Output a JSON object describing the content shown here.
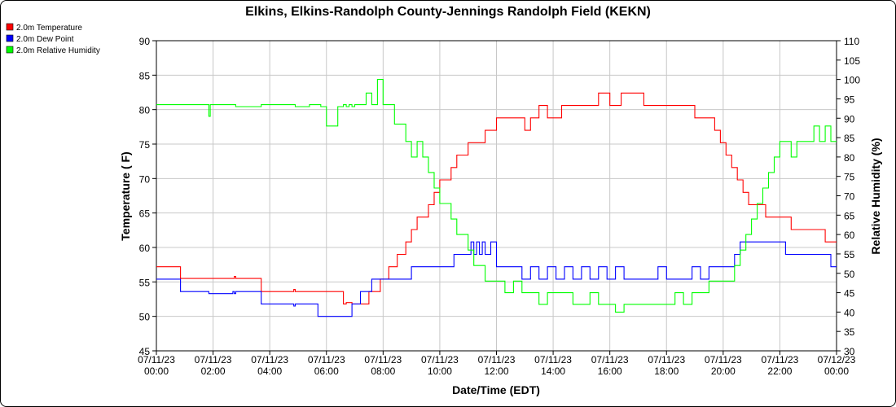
{
  "chart_data": {
    "type": "line",
    "title": "Elkins, Elkins-Randolph County-Jennings Randolph Field (KEKN)",
    "xlabel": "Date/Time (EDT)",
    "ylabel": "Temperature ( F)",
    "y2label": "Relative Humidity (%)",
    "ylim": [
      45,
      90
    ],
    "y2lim": [
      30,
      110
    ],
    "grid": true,
    "legend_position": "top-left",
    "x_range_hours": [
      0,
      24
    ],
    "x_ticks": [
      {
        "hour": 0,
        "date": "07/11/23",
        "time": "00:00"
      },
      {
        "hour": 2,
        "date": "07/11/23",
        "time": "02:00"
      },
      {
        "hour": 4,
        "date": "07/11/23",
        "time": "04:00"
      },
      {
        "hour": 6,
        "date": "07/11/23",
        "time": "06:00"
      },
      {
        "hour": 8,
        "date": "07/11/23",
        "time": "08:00"
      },
      {
        "hour": 10,
        "date": "07/11/23",
        "time": "10:00"
      },
      {
        "hour": 12,
        "date": "07/11/23",
        "time": "12:00"
      },
      {
        "hour": 14,
        "date": "07/11/23",
        "time": "14:00"
      },
      {
        "hour": 16,
        "date": "07/11/23",
        "time": "16:00"
      },
      {
        "hour": 18,
        "date": "07/11/23",
        "time": "18:00"
      },
      {
        "hour": 20,
        "date": "07/11/23",
        "time": "20:00"
      },
      {
        "hour": 22,
        "date": "07/11/23",
        "time": "22:00"
      },
      {
        "hour": 24,
        "date": "07/12/23",
        "time": "00:00"
      }
    ],
    "y_ticks": [
      45,
      50,
      55,
      60,
      65,
      70,
      75,
      80,
      85,
      90
    ],
    "y2_ticks": [
      30,
      35,
      40,
      45,
      50,
      55,
      60,
      65,
      70,
      75,
      80,
      85,
      90,
      95,
      100,
      105,
      110
    ],
    "series": [
      {
        "name": "2.0m Temperature",
        "color": "#ff0000",
        "axis": "left",
        "x": [
          0,
          0.8,
          0.85,
          2.7,
          2.75,
          2.8,
          3.6,
          3.7,
          4.8,
          4.85,
          4.9,
          5.6,
          5.7,
          5.8,
          6.5,
          6.6,
          6.65,
          6.7,
          6.9,
          7.0,
          7.1,
          7.4,
          7.5,
          7.7,
          7.9,
          8.0,
          8.2,
          8.4,
          8.5,
          8.6,
          8.8,
          9.0,
          9.2,
          9.4,
          9.6,
          9.8,
          10.0,
          10.2,
          10.4,
          10.6,
          10.8,
          11.0,
          11.2,
          11.4,
          11.6,
          11.8,
          12.0,
          12.4,
          12.8,
          13.0,
          13.2,
          13.5,
          13.8,
          14.0,
          14.3,
          14.6,
          15.0,
          15.3,
          15.6,
          16.0,
          16.4,
          16.8,
          17.2,
          17.6,
          18.0,
          18.4,
          18.7,
          19.0,
          19.4,
          19.7,
          19.9,
          20.1,
          20.3,
          20.5,
          20.7,
          20.9,
          21.1,
          21.3,
          21.5,
          21.7,
          21.9,
          22.1,
          22.4,
          22.7,
          23.0,
          23.3,
          23.6,
          24.0
        ],
        "y": [
          57.2,
          57.2,
          55.5,
          55.5,
          55.8,
          55.5,
          55.5,
          53.6,
          53.6,
          53.9,
          53.6,
          53.6,
          53.6,
          53.6,
          53.6,
          51.8,
          51.8,
          52.0,
          51.8,
          51.8,
          51.8,
          51.8,
          53.6,
          53.6,
          55.4,
          55.4,
          57.2,
          57.2,
          59.0,
          59.0,
          60.8,
          62.6,
          64.4,
          64.4,
          66.2,
          68.0,
          69.8,
          69.8,
          71.6,
          73.4,
          73.4,
          75.2,
          75.2,
          75.2,
          77.0,
          77.0,
          78.8,
          78.8,
          78.8,
          77.0,
          78.8,
          80.6,
          78.8,
          78.8,
          80.6,
          80.6,
          80.6,
          80.6,
          82.4,
          80.6,
          82.4,
          82.4,
          80.6,
          80.6,
          80.6,
          80.6,
          80.6,
          78.8,
          78.8,
          77.0,
          75.2,
          73.4,
          71.6,
          69.8,
          68.0,
          66.2,
          66.2,
          66.2,
          64.4,
          64.4,
          64.4,
          64.4,
          62.6,
          62.6,
          62.6,
          62.6,
          60.8,
          60.8
        ]
      },
      {
        "name": "2.0m Dew Point",
        "color": "#0000ff",
        "axis": "left",
        "x": [
          0,
          0.8,
          0.85,
          1.8,
          1.85,
          2.7,
          2.75,
          2.8,
          3.6,
          3.7,
          4.8,
          4.85,
          4.9,
          5.6,
          5.7,
          6.5,
          6.6,
          6.9,
          7.0,
          7.2,
          7.4,
          7.6,
          7.8,
          8.0,
          8.5,
          8.8,
          9.0,
          9.5,
          10.0,
          10.5,
          11.0,
          11.1,
          11.2,
          11.3,
          11.4,
          11.5,
          11.6,
          11.8,
          12.0,
          12.3,
          12.6,
          12.9,
          13.2,
          13.5,
          13.8,
          14.1,
          14.4,
          14.7,
          15.0,
          15.3,
          15.6,
          15.9,
          16.2,
          16.5,
          16.8,
          17.1,
          17.4,
          17.7,
          18.0,
          18.3,
          18.6,
          18.9,
          19.2,
          19.5,
          19.8,
          20.0,
          20.2,
          20.4,
          20.6,
          21.0,
          21.4,
          21.8,
          22.2,
          22.6,
          23.0,
          23.4,
          23.8,
          24.0
        ],
        "y": [
          55.4,
          55.4,
          53.6,
          53.6,
          53.3,
          53.6,
          53.3,
          53.6,
          53.6,
          51.8,
          51.8,
          51.5,
          51.8,
          51.8,
          50.0,
          50.0,
          50.0,
          51.8,
          51.8,
          53.6,
          53.6,
          55.4,
          55.4,
          55.4,
          55.4,
          55.4,
          57.2,
          57.2,
          57.2,
          59.0,
          59.0,
          60.8,
          59.0,
          60.8,
          59.0,
          60.8,
          59.0,
          60.8,
          57.2,
          57.2,
          57.2,
          55.4,
          57.2,
          55.4,
          57.2,
          55.4,
          57.2,
          55.4,
          57.2,
          55.4,
          57.2,
          55.4,
          57.2,
          55.4,
          55.4,
          55.4,
          55.4,
          57.2,
          55.4,
          55.4,
          55.4,
          57.2,
          55.4,
          57.2,
          57.2,
          57.2,
          57.2,
          59.0,
          60.8,
          60.8,
          60.8,
          60.8,
          59.0,
          59.0,
          59.0,
          59.0,
          57.2,
          57.2
        ]
      },
      {
        "name": "2.0m Relative Humidity",
        "color": "#00ff00",
        "axis": "right",
        "x": [
          0,
          1.8,
          1.85,
          1.9,
          2.7,
          2.8,
          3.6,
          3.7,
          4.8,
          4.9,
          5.3,
          5.4,
          5.6,
          5.7,
          5.8,
          6.0,
          6.4,
          6.6,
          6.7,
          6.8,
          6.9,
          7.0,
          7.2,
          7.4,
          7.6,
          7.8,
          8.0,
          8.2,
          8.4,
          8.6,
          8.8,
          9.0,
          9.2,
          9.4,
          9.6,
          9.8,
          10.0,
          10.2,
          10.4,
          10.6,
          10.8,
          11.0,
          11.2,
          11.4,
          11.6,
          11.8,
          12.0,
          12.3,
          12.6,
          12.9,
          13.2,
          13.5,
          13.8,
          14.1,
          14.4,
          14.7,
          15.0,
          15.3,
          15.6,
          15.9,
          16.2,
          16.5,
          16.8,
          17.1,
          17.4,
          17.7,
          18.0,
          18.3,
          18.6,
          18.9,
          19.2,
          19.5,
          19.8,
          20.0,
          20.2,
          20.4,
          20.6,
          20.8,
          21.0,
          21.2,
          21.4,
          21.6,
          21.8,
          22.0,
          22.2,
          22.4,
          22.6,
          22.8,
          23.0,
          23.2,
          23.4,
          23.6,
          23.8,
          24.0
        ],
        "y": [
          93.5,
          93.5,
          90.5,
          93.5,
          93.5,
          93.0,
          93.0,
          93.5,
          93.5,
          93.0,
          93.0,
          93.5,
          93.5,
          93.5,
          93.0,
          88.0,
          93.0,
          93.5,
          93.0,
          93.5,
          93.0,
          93.5,
          93.5,
          96.5,
          93.5,
          100.0,
          93.5,
          93.5,
          88.5,
          88.5,
          84.0,
          80.0,
          84.0,
          80.0,
          76.0,
          72.0,
          68.0,
          68.0,
          64.0,
          60.0,
          60.0,
          56.0,
          52.0,
          52.0,
          48.0,
          48.0,
          48.0,
          45.0,
          48.0,
          45.0,
          45.0,
          42.0,
          45.0,
          45.0,
          45.0,
          42.0,
          42.0,
          45.0,
          42.0,
          42.0,
          40.0,
          42.0,
          42.0,
          42.0,
          42.0,
          42.0,
          42.0,
          45.0,
          42.0,
          45.0,
          45.0,
          48.0,
          48.0,
          48.0,
          48.0,
          52.0,
          56.0,
          60.0,
          64.0,
          68.0,
          72.0,
          76.0,
          80.0,
          84.0,
          84.0,
          80.0,
          84.0,
          84.0,
          84.0,
          88.0,
          84.0,
          88.0,
          84.0,
          84.0
        ]
      }
    ]
  }
}
